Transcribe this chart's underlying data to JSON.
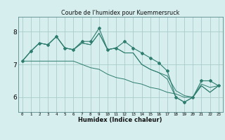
{
  "title": "Courbe de l’humidex pour Kuemmersruck",
  "xlabel": "Humidex (Indice chaleur)",
  "background_color": "#d6eeee",
  "grid_color": "#aacccc",
  "line_color": "#2e7d6e",
  "xlim": [
    -0.5,
    23.5
  ],
  "ylim": [
    5.55,
    8.45
  ],
  "yticks": [
    6,
    7,
    8
  ],
  "xtick_labels": [
    "0",
    "1",
    "2",
    "3",
    "4",
    "5",
    "6",
    "7",
    "8",
    "9",
    "10",
    "11",
    "12",
    "13",
    "14",
    "15",
    "16",
    "17",
    "18",
    "19",
    "20",
    "21",
    "22",
    "23"
  ],
  "series": [
    [
      7.1,
      7.4,
      7.65,
      7.6,
      7.85,
      7.5,
      7.45,
      7.7,
      7.7,
      8.1,
      7.45,
      7.5,
      7.7,
      7.5,
      7.35,
      7.2,
      7.05,
      6.8,
      6.0,
      5.85,
      6.0,
      6.5,
      6.5,
      6.35
    ],
    [
      7.1,
      7.4,
      7.65,
      7.6,
      7.85,
      7.5,
      7.45,
      7.65,
      7.6,
      7.95,
      7.45,
      7.5,
      7.35,
      7.35,
      7.0,
      6.85,
      6.75,
      6.65,
      6.2,
      6.05,
      6.0,
      6.4,
      6.3,
      6.35
    ],
    [
      7.1,
      7.4,
      7.65,
      7.6,
      7.85,
      7.5,
      7.45,
      7.65,
      7.6,
      7.95,
      7.45,
      7.5,
      7.35,
      7.35,
      7.0,
      6.85,
      6.75,
      6.55,
      6.0,
      5.85,
      6.0,
      6.35,
      6.15,
      6.35
    ],
    [
      7.1,
      7.1,
      7.1,
      7.1,
      7.1,
      7.1,
      7.1,
      7.0,
      6.9,
      6.85,
      6.7,
      6.6,
      6.55,
      6.45,
      6.4,
      6.3,
      6.25,
      6.15,
      6.1,
      6.0,
      6.0,
      6.35,
      6.15,
      6.35
    ]
  ]
}
